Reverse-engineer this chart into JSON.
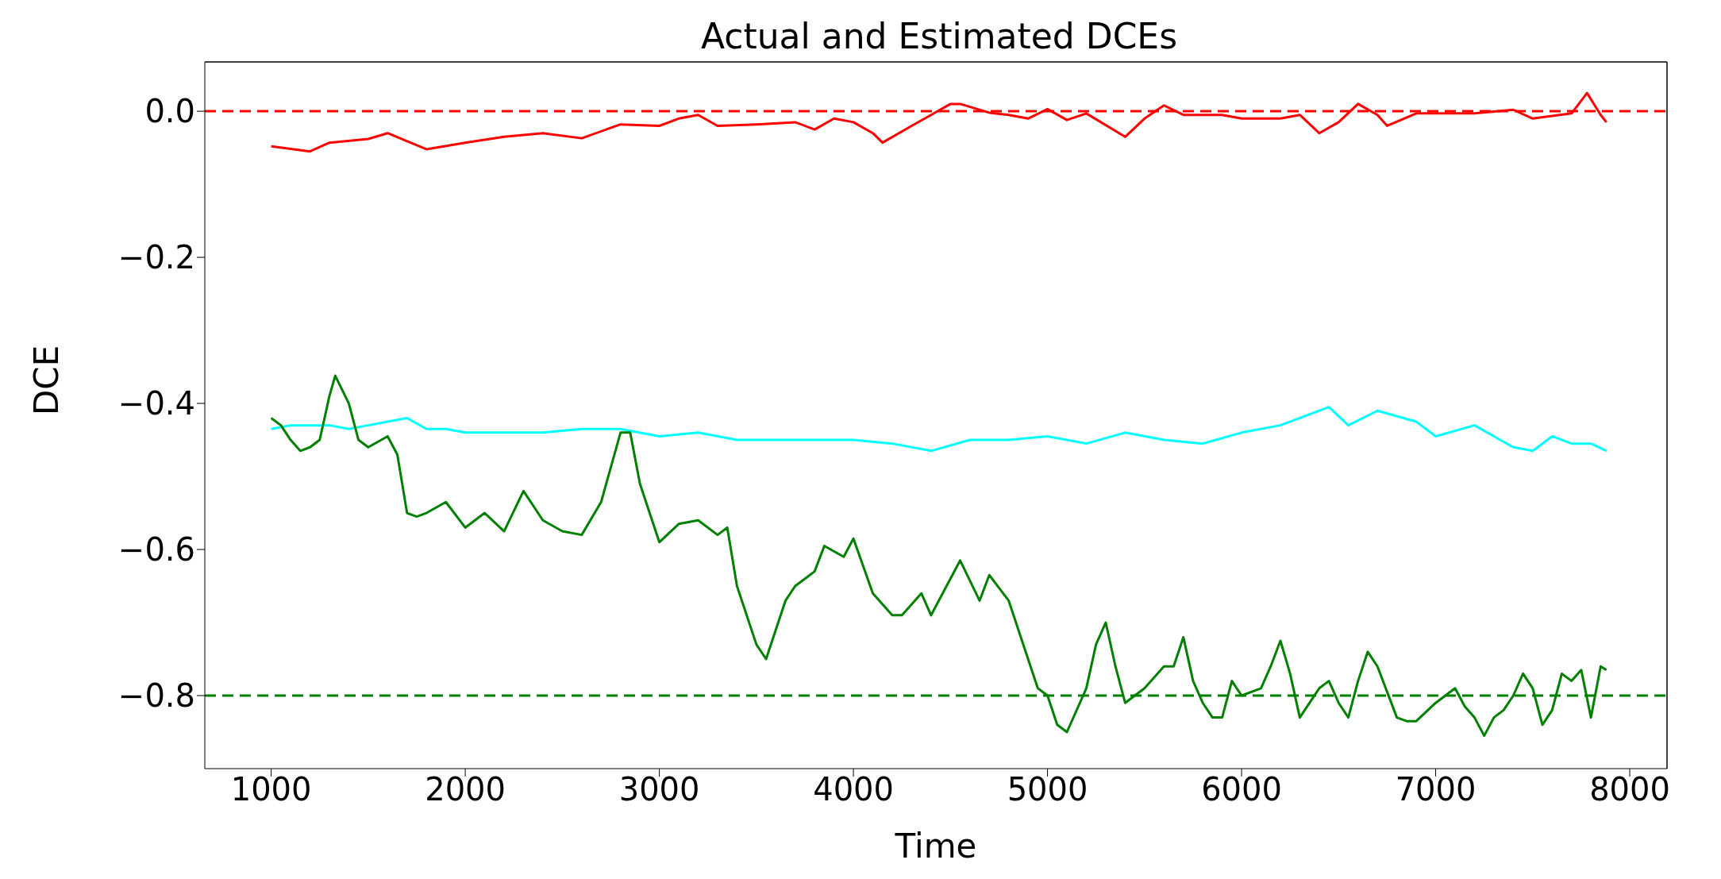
{
  "chart_data": {
    "type": "line",
    "title": "Actual and Estimated DCEs",
    "xlabel": "Time",
    "ylabel": "DCE",
    "xlim": [
      658,
      8192
    ],
    "xticks": [
      1000,
      2000,
      3000,
      4000,
      5000,
      6000,
      7000,
      8000
    ],
    "ylim": [
      -0.9,
      0.0675
    ],
    "yticks": [
      {
        "value": 0,
        "label": "0.0"
      },
      {
        "value": -0.2,
        "label": "−0.2"
      },
      {
        "value": -0.4,
        "label": "−0.4"
      },
      {
        "value": -0.6,
        "label": "−0.6"
      },
      {
        "value": -0.8,
        "label": "−0.8"
      }
    ],
    "line_style": "solid",
    "marker": "none",
    "ref_lines": [
      {
        "axis": "y",
        "value": 0,
        "color": "#ff0000",
        "line_style": "dashed"
      },
      {
        "axis": "y",
        "value": -0.8,
        "color": "#008000",
        "line_style": "dashed"
      }
    ],
    "series": [
      {
        "color": "#ff0000",
        "x": [
          1000,
          1200,
          1300,
          1500,
          1600,
          1800,
          2000,
          2200,
          2400,
          2600,
          2800,
          3000,
          3100,
          3200,
          3300,
          3500,
          3700,
          3800,
          3900,
          4000,
          4100,
          4150,
          4300,
          4400,
          4500,
          4550,
          4700,
          4800,
          4900,
          5000,
          5100,
          5200,
          5400,
          5500,
          5600,
          5700,
          5900,
          6000,
          6200,
          6300,
          6400,
          6500,
          6600,
          6700,
          6750,
          6900,
          7000,
          7200,
          7400,
          7500,
          7700,
          7780,
          7850,
          7880
        ],
        "values": [
          -0.048,
          -0.055,
          -0.043,
          -0.038,
          -0.03,
          -0.052,
          -0.043,
          -0.035,
          -0.03,
          -0.037,
          -0.018,
          -0.02,
          -0.01,
          -0.005,
          -0.02,
          -0.018,
          -0.015,
          -0.025,
          -0.01,
          -0.015,
          -0.03,
          -0.043,
          -0.02,
          -0.005,
          0.01,
          0.01,
          -0.002,
          -0.005,
          -0.01,
          0.003,
          -0.012,
          -0.003,
          -0.035,
          -0.01,
          0.008,
          -0.005,
          -0.005,
          -0.01,
          -0.01,
          -0.005,
          -0.03,
          -0.015,
          0.01,
          -0.005,
          -0.02,
          -0.003,
          -0.003,
          -0.003,
          0.002,
          -0.01,
          -0.003,
          0.025,
          -0.005,
          -0.015
        ]
      },
      {
        "color": "#00ffff",
        "x": [
          1000,
          1100,
          1200,
          1300,
          1400,
          1500,
          1600,
          1700,
          1800,
          1900,
          2000,
          2200,
          2400,
          2600,
          2800,
          3000,
          3200,
          3400,
          3600,
          3800,
          4000,
          4200,
          4400,
          4600,
          4800,
          5000,
          5200,
          5400,
          5600,
          5800,
          6000,
          6200,
          6300,
          6450,
          6550,
          6700,
          6900,
          7000,
          7200,
          7300,
          7400,
          7500,
          7600,
          7700,
          7800,
          7880
        ],
        "values": [
          -0.435,
          -0.43,
          -0.43,
          -0.43,
          -0.435,
          -0.43,
          -0.425,
          -0.42,
          -0.435,
          -0.435,
          -0.44,
          -0.44,
          -0.44,
          -0.435,
          -0.435,
          -0.445,
          -0.44,
          -0.45,
          -0.45,
          -0.45,
          -0.45,
          -0.455,
          -0.465,
          -0.45,
          -0.45,
          -0.445,
          -0.455,
          -0.44,
          -0.45,
          -0.455,
          -0.44,
          -0.43,
          -0.42,
          -0.405,
          -0.43,
          -0.41,
          -0.425,
          -0.445,
          -0.43,
          -0.445,
          -0.46,
          -0.465,
          -0.445,
          -0.455,
          -0.455,
          -0.465
        ]
      },
      {
        "color": "#008000",
        "x": [
          1000,
          1050,
          1100,
          1150,
          1200,
          1250,
          1300,
          1330,
          1400,
          1450,
          1500,
          1600,
          1650,
          1700,
          1750,
          1800,
          1900,
          2000,
          2100,
          2200,
          2300,
          2400,
          2500,
          2600,
          2700,
          2800,
          2850,
          2900,
          3000,
          3100,
          3200,
          3300,
          3350,
          3400,
          3500,
          3550,
          3650,
          3700,
          3800,
          3850,
          3950,
          4000,
          4100,
          4200,
          4250,
          4350,
          4400,
          4500,
          4550,
          4650,
          4700,
          4800,
          4900,
          4950,
          5000,
          5050,
          5100,
          5200,
          5250,
          5300,
          5350,
          5400,
          5500,
          5600,
          5650,
          5700,
          5750,
          5800,
          5850,
          5900,
          5950,
          6000,
          6100,
          6150,
          6200,
          6250,
          6300,
          6400,
          6450,
          6500,
          6550,
          6600,
          6650,
          6700,
          6800,
          6850,
          6900,
          7000,
          7100,
          7150,
          7200,
          7250,
          7300,
          7350,
          7400,
          7450,
          7500,
          7550,
          7600,
          7650,
          7700,
          7750,
          7800,
          7850,
          7880
        ],
        "values": [
          -0.42,
          -0.43,
          -0.45,
          -0.465,
          -0.46,
          -0.45,
          -0.39,
          -0.362,
          -0.4,
          -0.45,
          -0.46,
          -0.445,
          -0.47,
          -0.55,
          -0.555,
          -0.55,
          -0.535,
          -0.57,
          -0.55,
          -0.575,
          -0.52,
          -0.56,
          -0.575,
          -0.58,
          -0.535,
          -0.44,
          -0.44,
          -0.51,
          -0.59,
          -0.565,
          -0.56,
          -0.58,
          -0.57,
          -0.65,
          -0.73,
          -0.75,
          -0.67,
          -0.65,
          -0.63,
          -0.595,
          -0.61,
          -0.585,
          -0.66,
          -0.69,
          -0.69,
          -0.66,
          -0.69,
          -0.64,
          -0.615,
          -0.67,
          -0.635,
          -0.67,
          -0.75,
          -0.79,
          -0.8,
          -0.84,
          -0.85,
          -0.79,
          -0.73,
          -0.7,
          -0.76,
          -0.81,
          -0.79,
          -0.76,
          -0.76,
          -0.72,
          -0.78,
          -0.81,
          -0.83,
          -0.83,
          -0.78,
          -0.8,
          -0.79,
          -0.76,
          -0.725,
          -0.77,
          -0.83,
          -0.79,
          -0.78,
          -0.81,
          -0.83,
          -0.78,
          -0.74,
          -0.76,
          -0.83,
          -0.835,
          -0.835,
          -0.81,
          -0.79,
          -0.815,
          -0.83,
          -0.855,
          -0.83,
          -0.82,
          -0.8,
          -0.77,
          -0.79,
          -0.84,
          -0.82,
          -0.77,
          -0.78,
          -0.765,
          -0.83,
          -0.76,
          -0.765
        ]
      }
    ]
  }
}
